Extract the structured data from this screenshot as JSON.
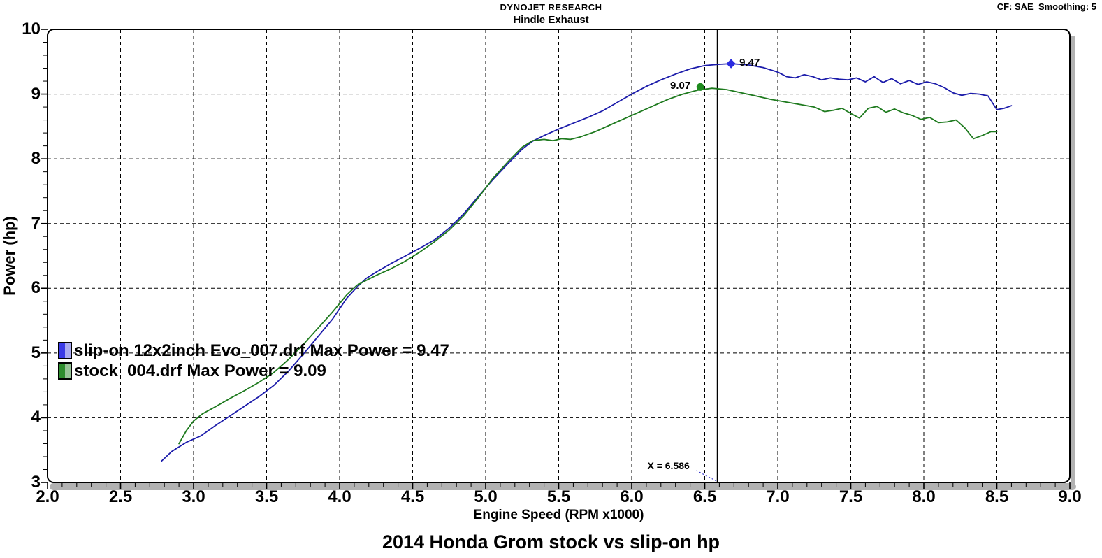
{
  "header": {
    "company": "DYNOJET RESEARCH",
    "subtitle": "Hindle Exhaust",
    "correction_note": "CF: SAE  Smoothing: 5"
  },
  "footer": {
    "title": "2014 Honda Grom stock vs slip-on hp"
  },
  "chart_data": {
    "type": "line",
    "title": "2014 Honda Grom stock vs slip-on hp",
    "xlabel": "Engine Speed (RPM x1000)",
    "ylabel": "Power (hp)",
    "xlim": [
      2.0,
      9.0
    ],
    "ylim": [
      3,
      10
    ],
    "x_tick_labels": [
      "2.0",
      "2.5",
      "3.0",
      "3.5",
      "4.0",
      "4.5",
      "5.0",
      "5.5",
      "6.0",
      "6.5",
      "7.0",
      "7.5",
      "8.0",
      "8.5",
      "9.0"
    ],
    "y_tick_labels": [
      "3",
      "4",
      "5",
      "6",
      "7",
      "8",
      "9",
      "10"
    ],
    "grid": "dashed black, vertical every 0.5 RPM, horizontal every 1 hp",
    "legend_position": "middle-left",
    "colors": {
      "slip_on_line": "#1b1baa",
      "stock_line": "#1e7a1e",
      "grid": "#000000",
      "border": "#000000",
      "axis_shadow": "#b2b2b2",
      "leader_line": "#3333cc"
    },
    "legend": [
      {
        "label": "slip-on 12x2inch Evo_007.drf Max Power = 9.47",
        "swatch_colors": [
          "#3939e6",
          "#a9a9f0"
        ]
      },
      {
        "label": "stock_004.drf Max Power = 9.09",
        "swatch_colors": [
          "#2e8d2e",
          "#97c497"
        ]
      }
    ],
    "series": [
      {
        "name": "slip-on 12x2inch Evo_007.drf",
        "max_power_hp": 9.47,
        "color": "#1b1baa",
        "points": [
          [
            2.78,
            3.33
          ],
          [
            2.85,
            3.48
          ],
          [
            2.95,
            3.62
          ],
          [
            3.05,
            3.72
          ],
          [
            3.15,
            3.88
          ],
          [
            3.25,
            4.03
          ],
          [
            3.35,
            4.18
          ],
          [
            3.45,
            4.33
          ],
          [
            3.55,
            4.5
          ],
          [
            3.65,
            4.72
          ],
          [
            3.75,
            4.98
          ],
          [
            3.85,
            5.25
          ],
          [
            3.95,
            5.52
          ],
          [
            4.05,
            5.85
          ],
          [
            4.12,
            6.02
          ],
          [
            4.18,
            6.15
          ],
          [
            4.25,
            6.25
          ],
          [
            4.35,
            6.38
          ],
          [
            4.45,
            6.5
          ],
          [
            4.55,
            6.62
          ],
          [
            4.65,
            6.75
          ],
          [
            4.75,
            6.93
          ],
          [
            4.85,
            7.15
          ],
          [
            4.95,
            7.42
          ],
          [
            5.05,
            7.68
          ],
          [
            5.15,
            7.92
          ],
          [
            5.25,
            8.15
          ],
          [
            5.32,
            8.27
          ],
          [
            5.4,
            8.36
          ],
          [
            5.5,
            8.46
          ],
          [
            5.6,
            8.55
          ],
          [
            5.7,
            8.64
          ],
          [
            5.8,
            8.74
          ],
          [
            5.9,
            8.87
          ],
          [
            6.0,
            9.0
          ],
          [
            6.1,
            9.12
          ],
          [
            6.2,
            9.22
          ],
          [
            6.3,
            9.31
          ],
          [
            6.4,
            9.39
          ],
          [
            6.5,
            9.44
          ],
          [
            6.6,
            9.46
          ],
          [
            6.68,
            9.47
          ],
          [
            6.8,
            9.45
          ],
          [
            6.9,
            9.41
          ],
          [
            7.0,
            9.34
          ],
          [
            7.06,
            9.27
          ],
          [
            7.12,
            9.25
          ],
          [
            7.18,
            9.3
          ],
          [
            7.24,
            9.27
          ],
          [
            7.3,
            9.22
          ],
          [
            7.36,
            9.25
          ],
          [
            7.42,
            9.23
          ],
          [
            7.48,
            9.22
          ],
          [
            7.54,
            9.25
          ],
          [
            7.6,
            9.19
          ],
          [
            7.66,
            9.27
          ],
          [
            7.72,
            9.18
          ],
          [
            7.78,
            9.24
          ],
          [
            7.84,
            9.16
          ],
          [
            7.9,
            9.21
          ],
          [
            7.96,
            9.15
          ],
          [
            8.02,
            9.19
          ],
          [
            8.08,
            9.16
          ],
          [
            8.14,
            9.1
          ],
          [
            8.2,
            9.02
          ],
          [
            8.26,
            8.98
          ],
          [
            8.32,
            9.01
          ],
          [
            8.38,
            9.0
          ],
          [
            8.44,
            8.97
          ],
          [
            8.5,
            8.76
          ],
          [
            8.55,
            8.78
          ],
          [
            8.6,
            8.82
          ]
        ]
      },
      {
        "name": "stock_004.drf",
        "max_power_hp": 9.09,
        "color": "#1e7a1e",
        "points": [
          [
            2.9,
            3.6
          ],
          [
            2.95,
            3.8
          ],
          [
            3.0,
            3.95
          ],
          [
            3.06,
            4.06
          ],
          [
            3.15,
            4.17
          ],
          [
            3.25,
            4.3
          ],
          [
            3.35,
            4.42
          ],
          [
            3.45,
            4.55
          ],
          [
            3.55,
            4.7
          ],
          [
            3.65,
            4.9
          ],
          [
            3.75,
            5.13
          ],
          [
            3.85,
            5.38
          ],
          [
            3.95,
            5.63
          ],
          [
            4.05,
            5.9
          ],
          [
            4.12,
            6.05
          ],
          [
            4.18,
            6.12
          ],
          [
            4.25,
            6.2
          ],
          [
            4.35,
            6.3
          ],
          [
            4.45,
            6.42
          ],
          [
            4.55,
            6.56
          ],
          [
            4.65,
            6.72
          ],
          [
            4.75,
            6.9
          ],
          [
            4.85,
            7.12
          ],
          [
            4.95,
            7.4
          ],
          [
            5.05,
            7.7
          ],
          [
            5.15,
            7.95
          ],
          [
            5.25,
            8.18
          ],
          [
            5.32,
            8.28
          ],
          [
            5.4,
            8.3
          ],
          [
            5.46,
            8.28
          ],
          [
            5.52,
            8.31
          ],
          [
            5.58,
            8.3
          ],
          [
            5.65,
            8.34
          ],
          [
            5.75,
            8.42
          ],
          [
            5.85,
            8.52
          ],
          [
            5.95,
            8.62
          ],
          [
            6.05,
            8.72
          ],
          [
            6.15,
            8.82
          ],
          [
            6.25,
            8.92
          ],
          [
            6.35,
            9.0
          ],
          [
            6.45,
            9.06
          ],
          [
            6.55,
            9.09
          ],
          [
            6.65,
            9.07
          ],
          [
            6.75,
            9.02
          ],
          [
            6.85,
            8.97
          ],
          [
            6.95,
            8.92
          ],
          [
            7.05,
            8.88
          ],
          [
            7.15,
            8.84
          ],
          [
            7.25,
            8.8
          ],
          [
            7.32,
            8.73
          ],
          [
            7.38,
            8.75
          ],
          [
            7.44,
            8.78
          ],
          [
            7.5,
            8.7
          ],
          [
            7.56,
            8.63
          ],
          [
            7.62,
            8.78
          ],
          [
            7.68,
            8.81
          ],
          [
            7.74,
            8.72
          ],
          [
            7.8,
            8.77
          ],
          [
            7.86,
            8.71
          ],
          [
            7.92,
            8.67
          ],
          [
            7.98,
            8.61
          ],
          [
            8.04,
            8.64
          ],
          [
            8.1,
            8.56
          ],
          [
            8.16,
            8.57
          ],
          [
            8.22,
            8.6
          ],
          [
            8.28,
            8.48
          ],
          [
            8.34,
            8.31
          ],
          [
            8.4,
            8.36
          ],
          [
            8.46,
            8.42
          ],
          [
            8.5,
            8.42
          ]
        ]
      }
    ],
    "annotations": [
      {
        "label": "9.47",
        "x": 6.68,
        "y": 9.47,
        "marker": "diamond",
        "color": "#2a2ae0",
        "label_side": "right"
      },
      {
        "label": "9.07",
        "x": 6.47,
        "y": 9.11,
        "marker": "circle",
        "color": "#1e8a1e",
        "label_side": "left"
      }
    ],
    "cursor": {
      "x": 6.586,
      "label": "X = 6.586"
    }
  }
}
